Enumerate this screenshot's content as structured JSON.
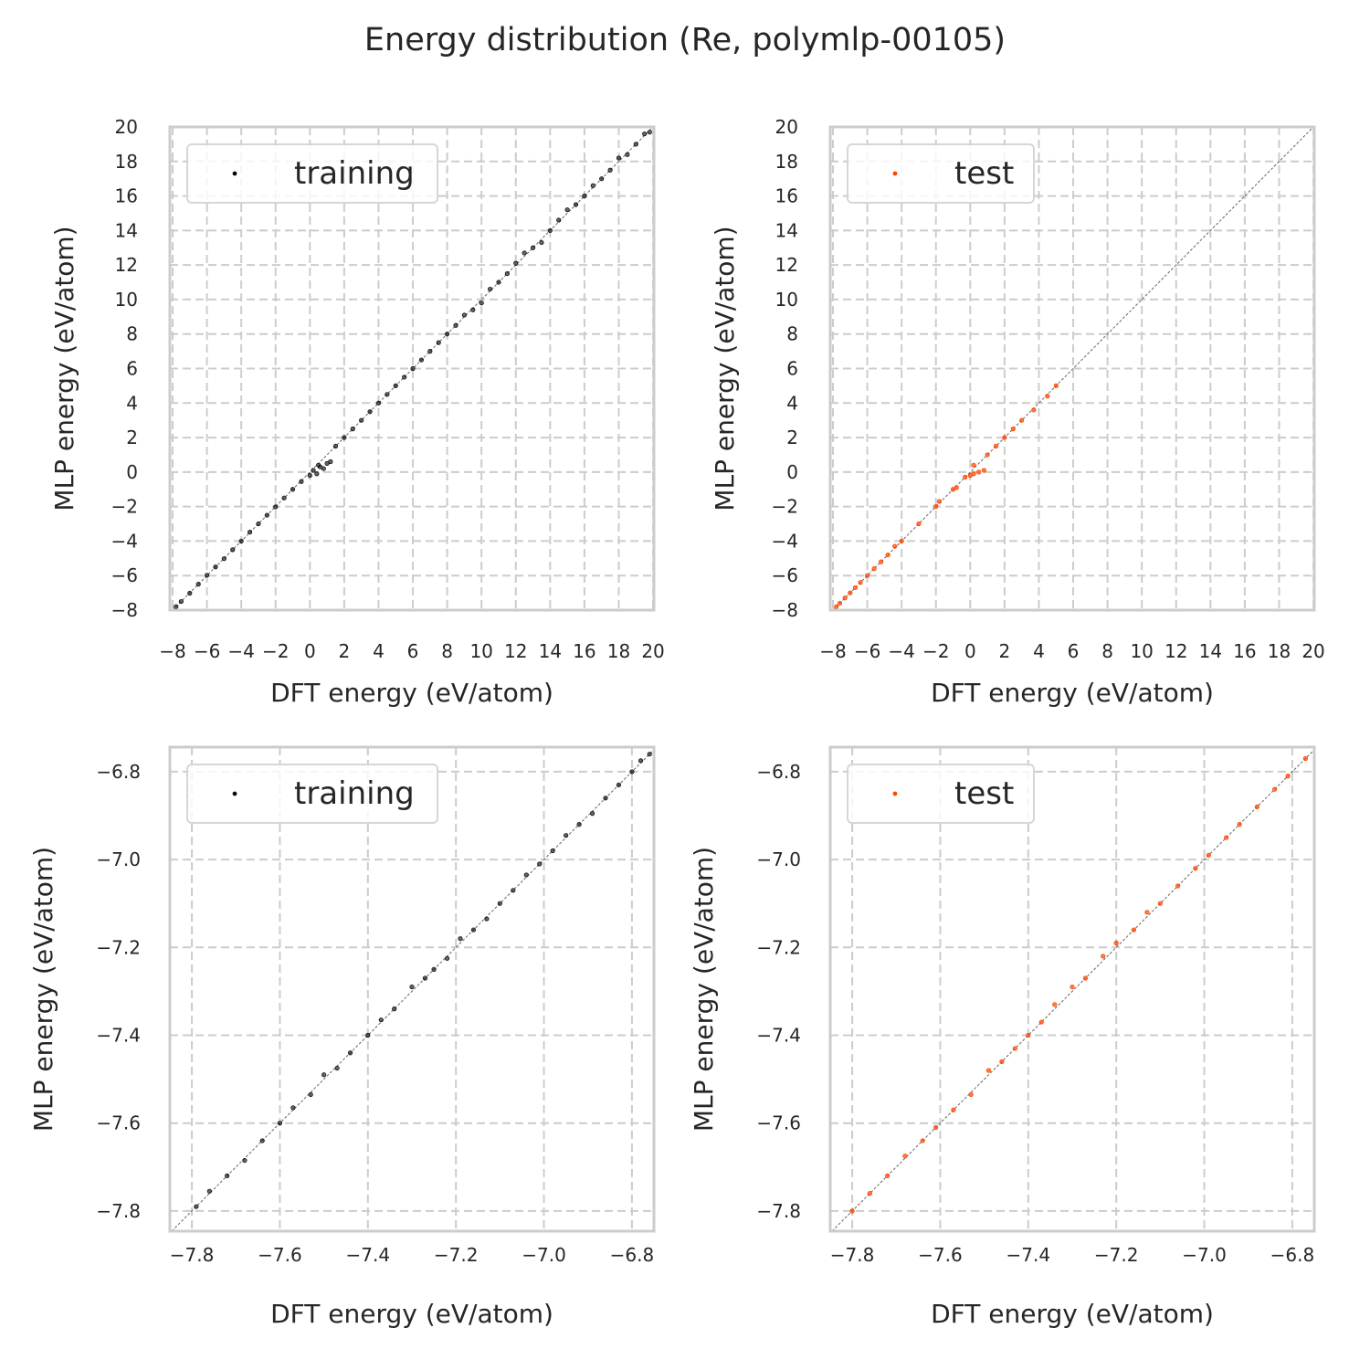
{
  "title": "Energy distribution (Re, polymlp-00105)",
  "colors": {
    "training": "#000000",
    "test": "#ff4500",
    "grid": "#cccccc",
    "frame": "#cccccc",
    "diagonal": "#666666"
  },
  "chart_data": [
    {
      "type": "scatter",
      "xlabel": "DFT energy (eV/atom)",
      "ylabel": "MLP energy (eV/atom)",
      "xlim": [
        -8.16,
        20.05
      ],
      "ylim": [
        -8,
        20
      ],
      "grid": true,
      "legend": "top-left",
      "xticks": [
        -8,
        -6,
        -4,
        -2,
        0,
        2,
        4,
        6,
        8,
        10,
        12,
        14,
        16,
        18,
        20
      ],
      "yticks": [
        -8,
        -6,
        -4,
        -2,
        0,
        2,
        4,
        6,
        8,
        10,
        12,
        14,
        16,
        18,
        20
      ],
      "series": [
        {
          "name": "training",
          "color": "#000000",
          "points": [
            [
              -7.8,
              -7.8
            ],
            [
              -7.5,
              -7.5
            ],
            [
              -7,
              -7.02
            ],
            [
              -6.5,
              -6.5
            ],
            [
              -6,
              -5.98
            ],
            [
              -5.5,
              -5.5
            ],
            [
              -5,
              -5.02
            ],
            [
              -4.5,
              -4.5
            ],
            [
              -4,
              -4
            ],
            [
              -3.5,
              -3.48
            ],
            [
              -3,
              -3
            ],
            [
              -2.5,
              -2.5
            ],
            [
              -2,
              -2.02
            ],
            [
              -1.5,
              -1.5
            ],
            [
              -1,
              -1
            ],
            [
              -0.5,
              -0.55
            ],
            [
              0,
              -0.2
            ],
            [
              0.2,
              0.1
            ],
            [
              0.4,
              -0.1
            ],
            [
              0.6,
              0.3
            ],
            [
              0.8,
              0.2
            ],
            [
              1,
              0.5
            ],
            [
              1.2,
              0.6
            ],
            [
              0.5,
              0.4
            ],
            [
              1.5,
              1.5
            ],
            [
              2,
              2
            ],
            [
              2.5,
              2.5
            ],
            [
              3,
              3
            ],
            [
              3.5,
              3.5
            ],
            [
              4,
              4
            ],
            [
              4.5,
              4.5
            ],
            [
              5,
              5
            ],
            [
              5.5,
              5.5
            ],
            [
              6,
              6
            ],
            [
              6.5,
              6.5
            ],
            [
              7,
              7
            ],
            [
              7.5,
              7.5
            ],
            [
              8,
              8
            ],
            [
              8.5,
              8.5
            ],
            [
              9,
              9.1
            ],
            [
              9.5,
              9.4
            ],
            [
              10,
              9.8
            ],
            [
              10.5,
              10.6
            ],
            [
              11,
              11
            ],
            [
              11.5,
              11.5
            ],
            [
              12,
              12.1
            ],
            [
              12.5,
              12.7
            ],
            [
              13,
              13
            ],
            [
              13.5,
              13.3
            ],
            [
              14,
              14
            ],
            [
              14.5,
              14.6
            ],
            [
              15,
              15.2
            ],
            [
              15.5,
              15.5
            ],
            [
              16,
              16
            ],
            [
              16.5,
              16.6
            ],
            [
              17,
              17
            ],
            [
              17.5,
              17.5
            ],
            [
              18,
              18.2
            ],
            [
              18.5,
              18.4
            ],
            [
              19,
              19
            ],
            [
              19.5,
              19.6
            ],
            [
              19.8,
              19.7
            ]
          ]
        }
      ]
    },
    {
      "type": "scatter",
      "xlabel": "DFT energy (eV/atom)",
      "ylabel": "MLP energy (eV/atom)",
      "xlim": [
        -8.16,
        20.05
      ],
      "ylim": [
        -8,
        20
      ],
      "grid": true,
      "legend": "top-left",
      "xticks": [
        -8,
        -6,
        -4,
        -2,
        0,
        2,
        4,
        6,
        8,
        10,
        12,
        14,
        16,
        18,
        20
      ],
      "yticks": [
        -8,
        -6,
        -4,
        -2,
        0,
        2,
        4,
        6,
        8,
        10,
        12,
        14,
        16,
        18,
        20
      ],
      "series": [
        {
          "name": "test",
          "color": "#ff4500",
          "points": [
            [
              -7.8,
              -7.8
            ],
            [
              -7.6,
              -7.6
            ],
            [
              -7.3,
              -7.3
            ],
            [
              -7,
              -7
            ],
            [
              -6.7,
              -6.7
            ],
            [
              -6.4,
              -6.4
            ],
            [
              -6,
              -6
            ],
            [
              -5.6,
              -5.6
            ],
            [
              -5.2,
              -5.2
            ],
            [
              -4.8,
              -4.8
            ],
            [
              -4.4,
              -4.3
            ],
            [
              -4,
              -4
            ],
            [
              -3,
              -3
            ],
            [
              -2,
              -2
            ],
            [
              -1.8,
              -1.7
            ],
            [
              -1,
              -1
            ],
            [
              -0.8,
              -0.9
            ],
            [
              -0.3,
              -0.3
            ],
            [
              0,
              -0.2
            ],
            [
              0.2,
              -0.1
            ],
            [
              0.5,
              0
            ],
            [
              0.8,
              0.1
            ],
            [
              0.2,
              0.4
            ],
            [
              1,
              1
            ],
            [
              1.5,
              1.5
            ],
            [
              2,
              2
            ],
            [
              2.5,
              2.5
            ],
            [
              3,
              3
            ],
            [
              3.7,
              3.6
            ],
            [
              4.5,
              4.4
            ],
            [
              5,
              5
            ]
          ]
        }
      ]
    },
    {
      "type": "scatter",
      "xlabel": "DFT energy (eV/atom)",
      "ylabel": "MLP energy (eV/atom)",
      "xlim": [
        -7.85,
        -6.75
      ],
      "ylim": [
        -7.846,
        -6.744
      ],
      "grid": true,
      "legend": "top-left",
      "xticks": [
        -7.8,
        -7.6,
        -7.4,
        -7.2,
        -7.0,
        -6.8
      ],
      "yticks": [
        -7.8,
        -7.6,
        -7.4,
        -7.2,
        -7.0,
        -6.8
      ],
      "series": [
        {
          "name": "training",
          "color": "#000000",
          "points": [
            [
              -7.79,
              -7.79
            ],
            [
              -7.76,
              -7.755
            ],
            [
              -7.72,
              -7.72
            ],
            [
              -7.68,
              -7.685
            ],
            [
              -7.64,
              -7.64
            ],
            [
              -7.6,
              -7.6
            ],
            [
              -7.57,
              -7.565
            ],
            [
              -7.53,
              -7.535
            ],
            [
              -7.5,
              -7.49
            ],
            [
              -7.47,
              -7.475
            ],
            [
              -7.44,
              -7.44
            ],
            [
              -7.4,
              -7.4
            ],
            [
              -7.37,
              -7.365
            ],
            [
              -7.34,
              -7.34
            ],
            [
              -7.3,
              -7.29
            ],
            [
              -7.27,
              -7.27
            ],
            [
              -7.25,
              -7.25
            ],
            [
              -7.22,
              -7.225
            ],
            [
              -7.19,
              -7.18
            ],
            [
              -7.16,
              -7.16
            ],
            [
              -7.13,
              -7.135
            ],
            [
              -7.1,
              -7.1
            ],
            [
              -7.07,
              -7.07
            ],
            [
              -7.04,
              -7.035
            ],
            [
              -7.01,
              -7.01
            ],
            [
              -6.98,
              -6.98
            ],
            [
              -6.95,
              -6.945
            ],
            [
              -6.92,
              -6.92
            ],
            [
              -6.89,
              -6.895
            ],
            [
              -6.86,
              -6.86
            ],
            [
              -6.83,
              -6.83
            ],
            [
              -6.8,
              -6.8
            ],
            [
              -6.78,
              -6.775
            ],
            [
              -6.76,
              -6.76
            ]
          ]
        }
      ]
    },
    {
      "type": "scatter",
      "xlabel": "DFT energy (eV/atom)",
      "ylabel": "MLP energy (eV/atom)",
      "xlim": [
        -7.85,
        -6.75
      ],
      "ylim": [
        -7.846,
        -6.744
      ],
      "grid": true,
      "legend": "top-left",
      "xticks": [
        -7.8,
        -7.6,
        -7.4,
        -7.2,
        -7.0,
        -6.8
      ],
      "yticks": [
        -7.8,
        -7.6,
        -7.4,
        -7.2,
        -7.0,
        -6.8
      ],
      "series": [
        {
          "name": "test",
          "color": "#ff4500",
          "points": [
            [
              -7.8,
              -7.8
            ],
            [
              -7.76,
              -7.76
            ],
            [
              -7.72,
              -7.72
            ],
            [
              -7.68,
              -7.675
            ],
            [
              -7.64,
              -7.64
            ],
            [
              -7.61,
              -7.61
            ],
            [
              -7.57,
              -7.57
            ],
            [
              -7.53,
              -7.535
            ],
            [
              -7.49,
              -7.48
            ],
            [
              -7.46,
              -7.46
            ],
            [
              -7.43,
              -7.43
            ],
            [
              -7.4,
              -7.4
            ],
            [
              -7.37,
              -7.37
            ],
            [
              -7.34,
              -7.33
            ],
            [
              -7.3,
              -7.29
            ],
            [
              -7.27,
              -7.27
            ],
            [
              -7.23,
              -7.22
            ],
            [
              -7.2,
              -7.19
            ],
            [
              -7.16,
              -7.16
            ],
            [
              -7.13,
              -7.12
            ],
            [
              -7.1,
              -7.1
            ],
            [
              -7.06,
              -7.06
            ],
            [
              -7.02,
              -7.02
            ],
            [
              -6.99,
              -6.99
            ],
            [
              -6.95,
              -6.95
            ],
            [
              -6.92,
              -6.92
            ],
            [
              -6.88,
              -6.88
            ],
            [
              -6.84,
              -6.84
            ],
            [
              -6.81,
              -6.81
            ],
            [
              -6.77,
              -6.77
            ]
          ]
        }
      ]
    }
  ]
}
